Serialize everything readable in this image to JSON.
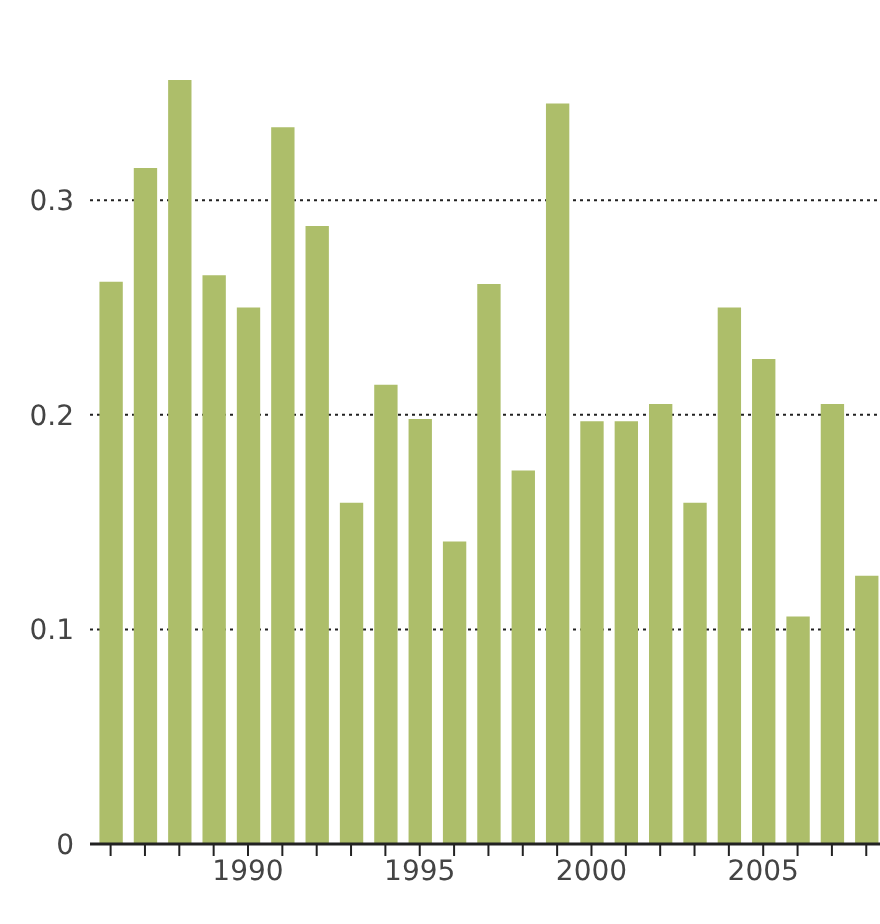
{
  "chart_data": {
    "type": "bar",
    "color": "#adbe6a",
    "x": [
      1986,
      1987,
      1988,
      1989,
      1990,
      1991,
      1992,
      1993,
      1994,
      1995,
      1996,
      1997,
      1998,
      1999,
      2000,
      2001,
      2002,
      2003,
      2004,
      2005,
      2006,
      2007,
      2008
    ],
    "values": [
      0.262,
      0.315,
      0.356,
      0.265,
      0.25,
      0.334,
      0.288,
      0.159,
      0.214,
      0.198,
      0.141,
      0.261,
      0.174,
      0.345,
      0.197,
      0.197,
      0.205,
      0.159,
      0.25,
      0.226,
      0.106,
      0.205,
      0.125
    ],
    "xlim": [
      1985.4,
      2008.4
    ],
    "xticks": [
      {
        "value": 1986,
        "label": null
      },
      {
        "value": 1987,
        "label": null
      },
      {
        "value": 1988,
        "label": null
      },
      {
        "value": 1989,
        "label": null
      },
      1990,
      {
        "value": 1991,
        "label": null
      },
      {
        "value": 1992,
        "label": null
      },
      {
        "value": 1993,
        "label": null
      },
      {
        "value": 1994,
        "label": null
      },
      1995,
      {
        "value": 1996,
        "label": null
      },
      {
        "value": 1997,
        "label": null
      },
      {
        "value": 1998,
        "label": null
      },
      {
        "value": 1999,
        "label": null
      },
      2000,
      {
        "value": 2001,
        "label": null
      },
      {
        "value": 2002,
        "label": null
      },
      {
        "value": 2003,
        "label": null
      },
      {
        "value": 2004,
        "label": null
      },
      2005,
      {
        "value": 2006,
        "label": null
      },
      {
        "value": 2007,
        "label": null
      },
      {
        "value": 2008,
        "label": null
      }
    ],
    "ylim": [
      0,
      0.356
    ],
    "yticks": [
      0,
      0.1,
      0.2,
      0.3
    ],
    "grid": "y"
  }
}
